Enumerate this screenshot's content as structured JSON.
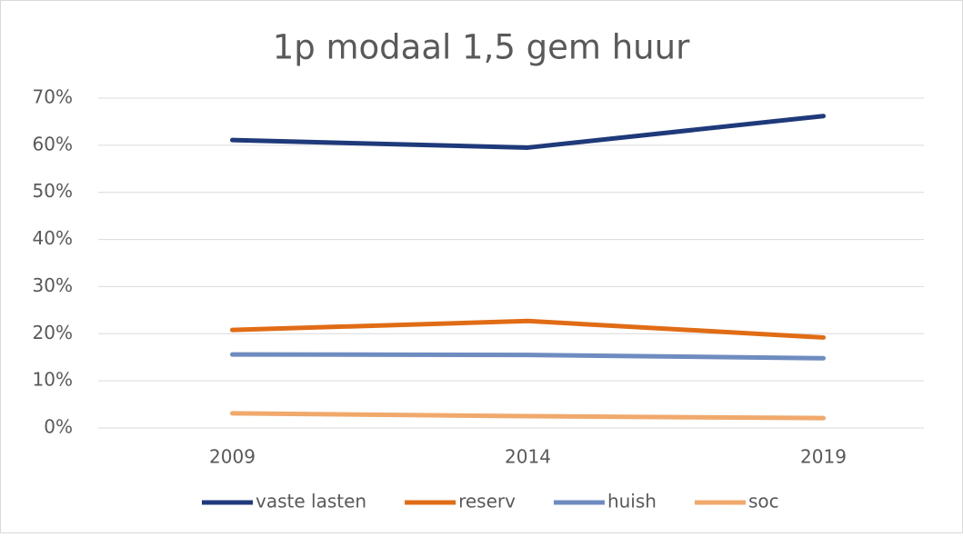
{
  "chart_data": {
    "type": "line",
    "title": "1p modaal 1,5 gem huur",
    "categories": [
      "2009",
      "2014",
      "2019"
    ],
    "series": [
      {
        "name": "vaste lasten",
        "color": "#1f3a7a",
        "values": [
          61.1,
          59.5,
          66.2
        ]
      },
      {
        "name": "reserv",
        "color": "#e06c16",
        "values": [
          20.8,
          22.7,
          19.2
        ]
      },
      {
        "name": "huish",
        "color": "#6f8cc0",
        "values": [
          15.6,
          15.5,
          14.8
        ]
      },
      {
        "name": "soc",
        "color": "#f0a96c",
        "values": [
          3.1,
          2.5,
          2.1
        ]
      }
    ],
    "ylim": [
      0,
      70
    ],
    "yticks": [
      {
        "value": 0,
        "label": "0%"
      },
      {
        "value": 10,
        "label": "10%"
      },
      {
        "value": 20,
        "label": "20%"
      },
      {
        "value": 30,
        "label": "30%"
      },
      {
        "value": 40,
        "label": "40%"
      },
      {
        "value": 50,
        "label": "50%"
      },
      {
        "value": 60,
        "label": "60%"
      },
      {
        "value": 70,
        "label": "70%"
      }
    ],
    "grid": true,
    "legend": "bottom"
  }
}
